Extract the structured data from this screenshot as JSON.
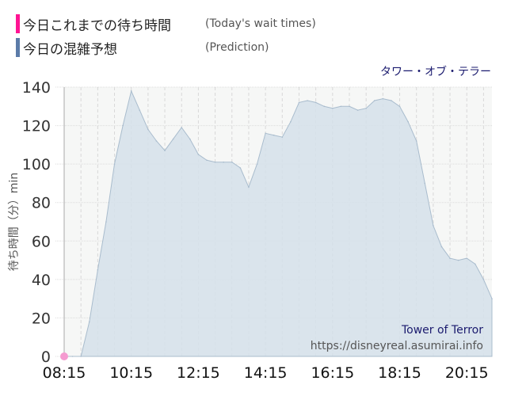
{
  "legend": [
    {
      "jp": "今日これまでの待ち時間",
      "en": "(Today's wait times)",
      "color": "#ff1493"
    },
    {
      "jp": "今日の混雑予想",
      "en": "(Prediction)",
      "color": "#5b7ba8"
    }
  ],
  "subtitle": "タワー・オブ・テラー",
  "watermark": {
    "name": "Tower of Terror",
    "url": "https://disneyreal.asumirai.info"
  },
  "chart_data": {
    "type": "area",
    "ylabel": "待ち時間（分）min",
    "ylim": [
      0,
      140
    ],
    "yticks": [
      0,
      20,
      40,
      60,
      80,
      100,
      120,
      140
    ],
    "xlim": [
      "08:15",
      "21:00"
    ],
    "xticks": [
      "08:15",
      "10:15",
      "12:15",
      "14:15",
      "16:15",
      "18:15",
      "20:15"
    ],
    "grid": true,
    "series": [
      {
        "name": "今日の混雑予想",
        "color": "#5b7ba8",
        "x": [
          "08:15",
          "08:30",
          "08:45",
          "09:00",
          "09:15",
          "09:30",
          "09:45",
          "10:00",
          "10:15",
          "10:30",
          "10:45",
          "11:00",
          "11:15",
          "11:30",
          "11:45",
          "12:00",
          "12:15",
          "12:30",
          "12:45",
          "13:00",
          "13:15",
          "13:30",
          "13:45",
          "14:00",
          "14:15",
          "14:30",
          "14:45",
          "15:00",
          "15:15",
          "15:30",
          "15:45",
          "16:00",
          "16:15",
          "16:30",
          "16:45",
          "17:00",
          "17:15",
          "17:30",
          "17:45",
          "18:00",
          "18:15",
          "18:30",
          "18:45",
          "19:00",
          "19:15",
          "19:30",
          "19:45",
          "20:00",
          "20:15",
          "20:30",
          "20:45",
          "21:00"
        ],
        "values": [
          0,
          0,
          0,
          18,
          45,
          70,
          100,
          120,
          138,
          128,
          118,
          112,
          107,
          113,
          119,
          113,
          105,
          102,
          101,
          101,
          101,
          98,
          88,
          100,
          116,
          115,
          114,
          122,
          132,
          133,
          132,
          130,
          129,
          130,
          130,
          128,
          129,
          133,
          134,
          133,
          130,
          122,
          112,
          90,
          68,
          57,
          51,
          50,
          51,
          48,
          40,
          30
        ]
      },
      {
        "name": "今日これまでの待ち時間",
        "color": "#ff1493",
        "x": [
          "08:15"
        ],
        "values": [
          0
        ]
      }
    ]
  }
}
